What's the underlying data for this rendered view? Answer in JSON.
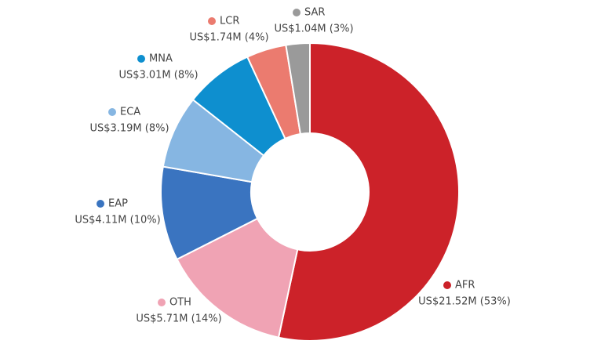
{
  "chart_data": {
    "type": "pie",
    "categories": [
      "AFR",
      "OTH",
      "EAP",
      "ECA",
      "MNA",
      "LCR",
      "SAR"
    ],
    "values": [
      21.52,
      5.71,
      4.11,
      3.19,
      3.01,
      1.74,
      1.04
    ],
    "value_labels": [
      "US$21.52M (53%)",
      "US$5.71M (14%)",
      "US$4.11M (10%)",
      "US$3.19M (8%)",
      "US$3.01M (8%)",
      "US$1.74M (4%)",
      "US$1.04M (3%)"
    ],
    "colors": [
      "#cc2229",
      "#f0a3b4",
      "#3a74c0",
      "#86b6e2",
      "#0e8fcf",
      "#eb7b6f",
      "#9a9a9a"
    ]
  }
}
